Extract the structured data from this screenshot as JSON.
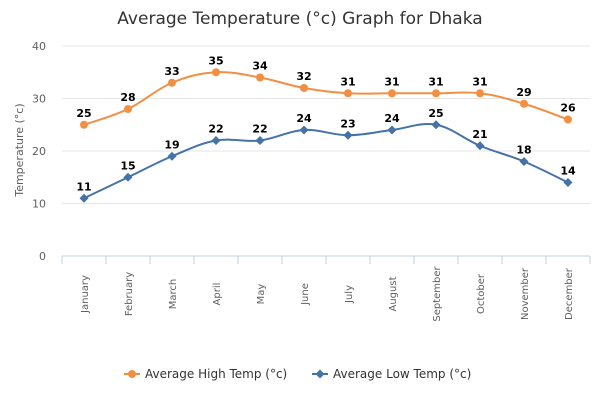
{
  "chart_data": {
    "type": "line",
    "title": "Average Temperature (°c) Graph for Dhaka",
    "ylabel": "Temperature (°c)",
    "xlabel": "",
    "ylim": [
      0,
      40
    ],
    "yticks": [
      0,
      10,
      20,
      30,
      40
    ],
    "grid": true,
    "legend_position": "bottom",
    "categories": [
      "January",
      "February",
      "March",
      "April",
      "May",
      "June",
      "July",
      "August",
      "September",
      "October",
      "November",
      "December"
    ],
    "series": [
      {
        "name": "Average High Temp (°c)",
        "color": "#f28f43",
        "marker": "circle",
        "values": [
          25,
          28,
          33,
          35,
          34,
          32,
          31,
          31,
          31,
          31,
          29,
          26
        ]
      },
      {
        "name": "Average Low Temp (°c)",
        "color": "#4572a7",
        "marker": "diamond",
        "values": [
          11,
          15,
          19,
          22,
          22,
          24,
          23,
          24,
          25,
          21,
          18,
          14
        ]
      }
    ]
  }
}
